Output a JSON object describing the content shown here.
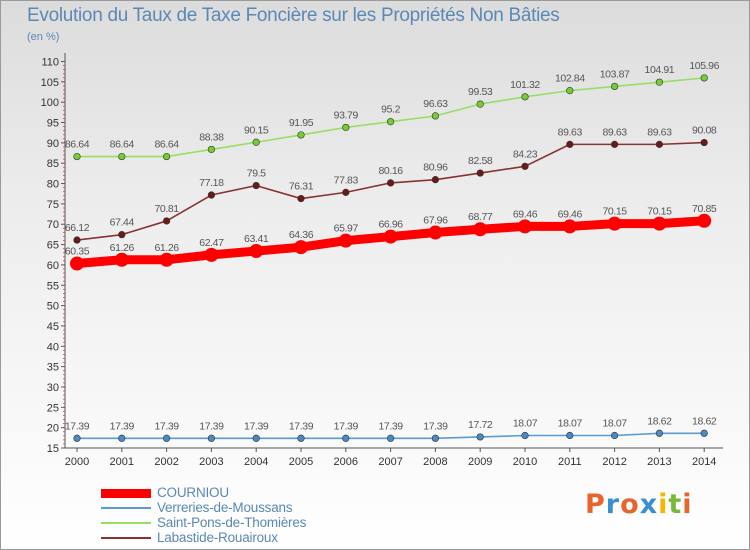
{
  "chart_data": {
    "type": "line",
    "title": "Evolution du Taux de Taxe Foncière sur les Propriétés Non Bâties",
    "subtitle": "(en %)",
    "x": [
      "2000",
      "2001",
      "2002",
      "2003",
      "2004",
      "2005",
      "2006",
      "2007",
      "2008",
      "2009",
      "2010",
      "2011",
      "2012",
      "2013",
      "2014"
    ],
    "ylim": [
      15,
      110
    ],
    "yticks": [
      15,
      20,
      25,
      30,
      35,
      40,
      45,
      50,
      55,
      60,
      65,
      70,
      75,
      80,
      85,
      90,
      95,
      100,
      105,
      110
    ],
    "grid": false,
    "legend_position": "bottom-left",
    "series": [
      {
        "name": "COURNIOU",
        "color": "#ff0000",
        "highlight": true,
        "values": [
          60.35,
          61.26,
          61.26,
          62.47,
          63.41,
          64.36,
          65.97,
          66.96,
          67.96,
          68.77,
          69.46,
          69.46,
          70.15,
          70.15,
          70.85
        ],
        "labels": [
          "60.35",
          "61.26",
          "61.26",
          "62.47",
          "63.41",
          "64.36",
          "65.97",
          "66.96",
          "67.96",
          "68.77",
          "69.46",
          "69.46",
          "70.15",
          "70.15",
          "70.85"
        ]
      },
      {
        "name": "Verreries-de-Moussans",
        "color": "#5b9bd5",
        "marker": "#4a89c4",
        "values": [
          17.39,
          17.39,
          17.39,
          17.39,
          17.39,
          17.39,
          17.39,
          17.39,
          17.39,
          17.72,
          18.07,
          18.07,
          18.07,
          18.62,
          18.62
        ],
        "labels": [
          "17.39",
          "17.39",
          "17.39",
          "17.39",
          "17.39",
          "17.39",
          "17.39",
          "17.39",
          "17.39",
          "17.72",
          "18.07",
          "18.07",
          "18.07",
          "18.62",
          "18.62"
        ]
      },
      {
        "name": "Saint-Pons-de-Thomières",
        "color": "#99dd66",
        "marker": "#77cc33",
        "values": [
          86.64,
          86.64,
          86.64,
          88.38,
          90.15,
          91.95,
          93.79,
          95.2,
          96.63,
          99.53,
          101.32,
          102.84,
          103.87,
          104.91,
          105.96
        ],
        "labels": [
          "86.64",
          "86.64",
          "86.64",
          "88.38",
          "90.15",
          "91.95",
          "93.79",
          "95.2",
          "96.63",
          "99.53",
          "101.32",
          "102.84",
          "103.87",
          "104.91",
          "105.96"
        ]
      },
      {
        "name": "Labastide-Rouairoux",
        "color": "#883333",
        "marker": "#6a1a1a",
        "values": [
          66.12,
          67.44,
          70.81,
          77.18,
          79.5,
          76.31,
          77.83,
          80.16,
          80.96,
          82.58,
          84.23,
          89.63,
          89.63,
          89.63,
          90.08
        ],
        "labels": [
          "66.12",
          "67.44",
          "70.81",
          "77.18",
          "79.5",
          "76.31",
          "77.83",
          "80.16",
          "80.96",
          "82.58",
          "84.23",
          "89.63",
          "89.63",
          "89.63",
          "90.08"
        ]
      }
    ]
  },
  "logo": {
    "text": "Proxiti",
    "letters": [
      "P",
      "r",
      "o",
      "x",
      "i",
      "t",
      "i"
    ],
    "colors": [
      "#e8642c",
      "#3a8fd0",
      "#e8642c",
      "#3a8fd0",
      "#f5b800",
      "#7ab83c",
      "#e8642c"
    ]
  }
}
